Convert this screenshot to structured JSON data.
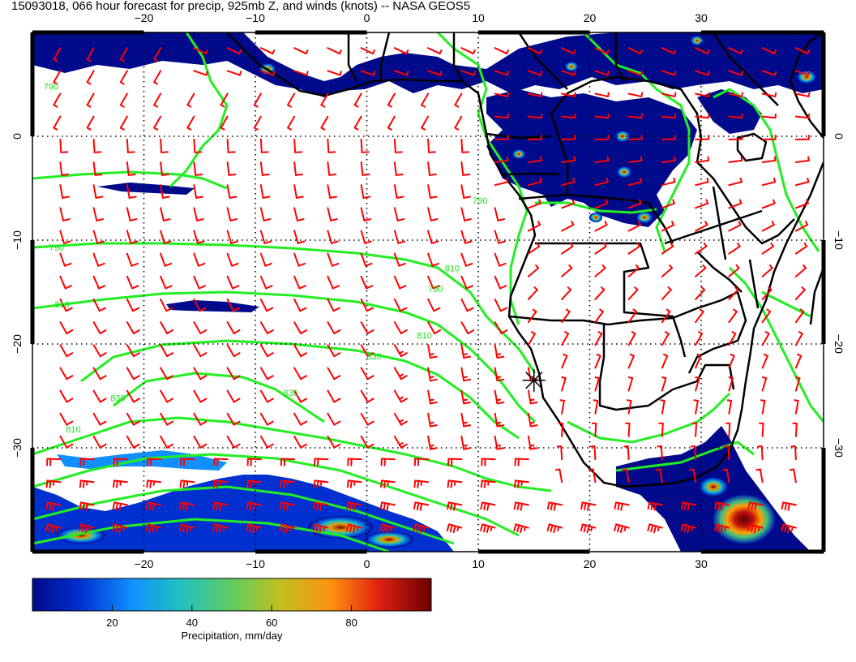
{
  "title": "15093018, 066 hour forecast for precip, 925mb Z, and winds (knots) -- NASA GEOS5",
  "map": {
    "lon_range": [
      -30,
      41
    ],
    "lat_range": [
      -40,
      10
    ],
    "grid_lons": [
      -20,
      -10,
      0,
      10,
      20,
      30
    ],
    "grid_lats": [
      0,
      -10,
      -20,
      -30
    ],
    "top_lon_labels": [
      "−20",
      "−10",
      "0",
      "10",
      "20",
      "30"
    ],
    "bottom_lon_labels": [
      "−20",
      "−10",
      "0",
      "10",
      "20",
      "30"
    ],
    "left_lat_labels": [
      "0",
      "−10",
      "−20",
      "−30"
    ],
    "right_lat_labels": [
      "0",
      "−10",
      "−20",
      "−30"
    ],
    "colors": {
      "wind_barbs": "#ff0000",
      "contours": "#22ee22",
      "coastline": "#000000",
      "precip_low": "#000a8a",
      "precip_high": "#6b0000"
    },
    "contour_labels": [
      {
        "text": "790",
        "lon": -29,
        "lat": 4.5
      },
      {
        "text": "790",
        "lon": -28.5,
        "lat": -11
      },
      {
        "text": "810",
        "lon": -28,
        "lat": -16.5
      },
      {
        "text": "790",
        "lon": 5.5,
        "lat": -15
      },
      {
        "text": "810",
        "lon": 4.5,
        "lat": -19.5
      },
      {
        "text": "830",
        "lon": 0,
        "lat": -21.5
      },
      {
        "text": "830",
        "lon": -7.5,
        "lat": -25
      },
      {
        "text": "830",
        "lon": -23,
        "lat": -25.5
      },
      {
        "text": "810",
        "lon": -27,
        "lat": -28.5
      },
      {
        "text": "790",
        "lon": 9.5,
        "lat": -6.5
      },
      {
        "text": "810",
        "lon": 7,
        "lat": -13
      }
    ],
    "marker": {
      "lon": 15,
      "lat": -23.5,
      "symbol": "cross-star"
    }
  },
  "colorbar": {
    "ticks": [
      "20",
      "40",
      "60",
      "80"
    ],
    "tick_values": [
      20,
      40,
      60,
      80
    ],
    "range": [
      0,
      100
    ],
    "label": "Precipitation, mm/day",
    "colors": [
      "#000a8a",
      "#0030d0",
      "#1090ff",
      "#20c0c0",
      "#60cc60",
      "#c0c020",
      "#ff9010",
      "#e02010",
      "#6b0000"
    ]
  }
}
